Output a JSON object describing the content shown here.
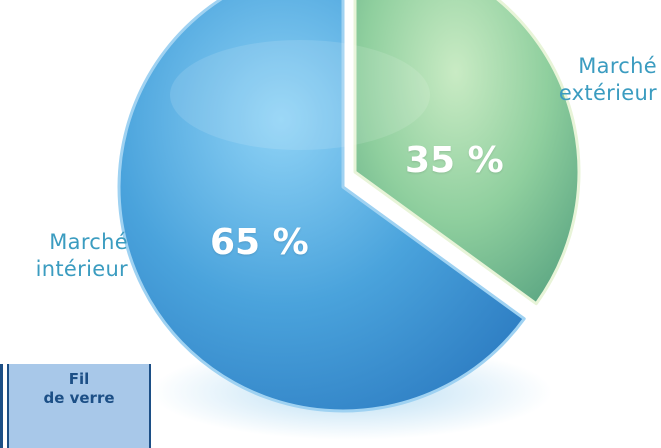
{
  "chart_data": {
    "type": "pie",
    "slices": [
      {
        "label": "Marché\nintérieur",
        "value": 65,
        "value_label": "65 %",
        "color": "#4aa3dc"
      },
      {
        "label": "Marché\nextérieur",
        "value": 35,
        "value_label": "35 %",
        "color": "#8fcf9e"
      }
    ],
    "start": "12 o'clock",
    "direction": "clockwise, exploded, 3D shaded"
  },
  "table_header": {
    "label": "Fil\nde verre",
    "background": "#a8c8e9",
    "text_color": "#1c4f86"
  }
}
